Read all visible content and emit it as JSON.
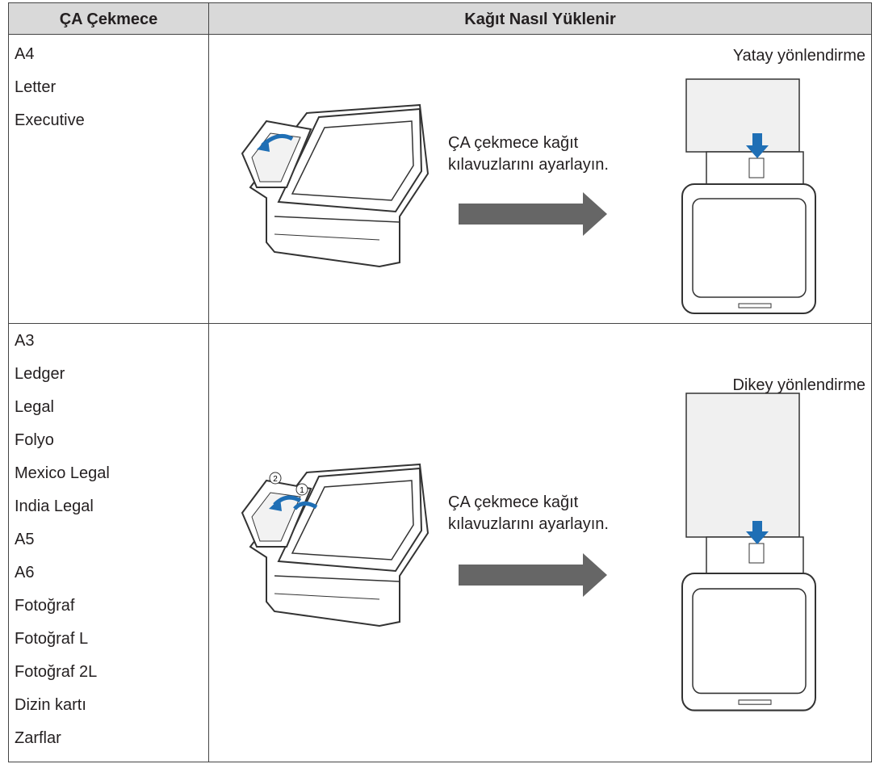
{
  "header": {
    "columns": [
      "ÇA Çekmece",
      "Kağıt Nasıl Yüklenir"
    ]
  },
  "rows": [
    {
      "sizes": [
        "A4",
        "Letter",
        "Executive"
      ],
      "caption": [
        "ÇA çekmece kağıt",
        "kılavuzlarını ayarlayın."
      ],
      "orientation": "Yatay yönlendirme"
    },
    {
      "sizes": [
        "A3",
        "Ledger",
        "Legal",
        "Folyo",
        "Mexico Legal",
        "India Legal",
        "A5",
        "A6",
        "Fotoğraf",
        "Fotoğraf L",
        "Fotoğraf 2L",
        "Dizin kartı",
        "Zarflar"
      ],
      "caption": [
        "ÇA çekmece kağıt",
        "kılavuzlarını ayarlayın."
      ],
      "orientation": "Dikey yönlendirme"
    }
  ]
}
